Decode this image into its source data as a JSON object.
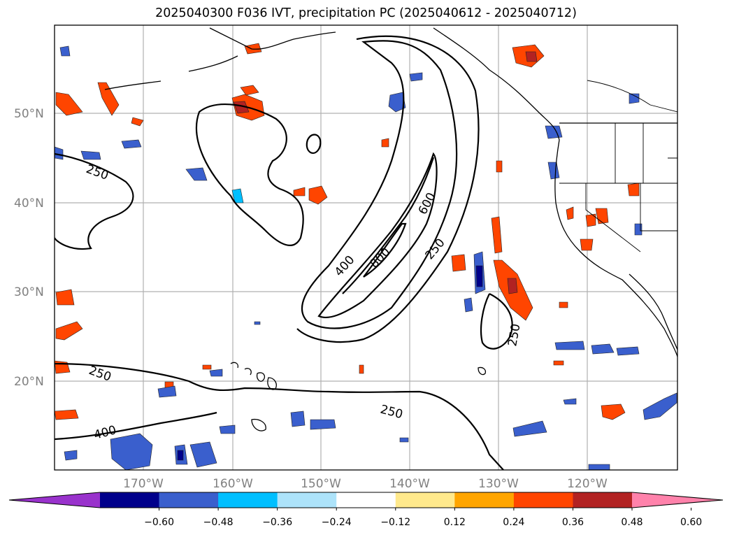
{
  "title": "2025040300 F036 IVT, precipitation PC (2025040612 - 2025040712)",
  "lat_ticks": [
    "50°N",
    "40°N",
    "30°N",
    "20°N"
  ],
  "lon_ticks": [
    "170°W",
    "160°W",
    "150°W",
    "140°W",
    "130°W",
    "120°W"
  ],
  "contour_labels": [
    "250",
    "250",
    "250",
    "250",
    "250",
    "400",
    "400",
    "600",
    "800"
  ],
  "colorbar": {
    "tick_labels": [
      "−0.60",
      "−0.48",
      "−0.36",
      "−0.24",
      "−0.12",
      "0.12",
      "0.24",
      "0.36",
      "0.48",
      "0.60"
    ],
    "colors": [
      "#9932CC",
      "#00008B",
      "#3A5FCD",
      "#00BFFF",
      "#ADE3FA",
      "#FFFFFF",
      "#FFE98C",
      "#FFA500",
      "#FF4500",
      "#B22222",
      "#FF82AB"
    ]
  },
  "colors": {
    "land_lines": "#000000",
    "grid": "#b0b0b0",
    "contour": "#000000"
  }
}
